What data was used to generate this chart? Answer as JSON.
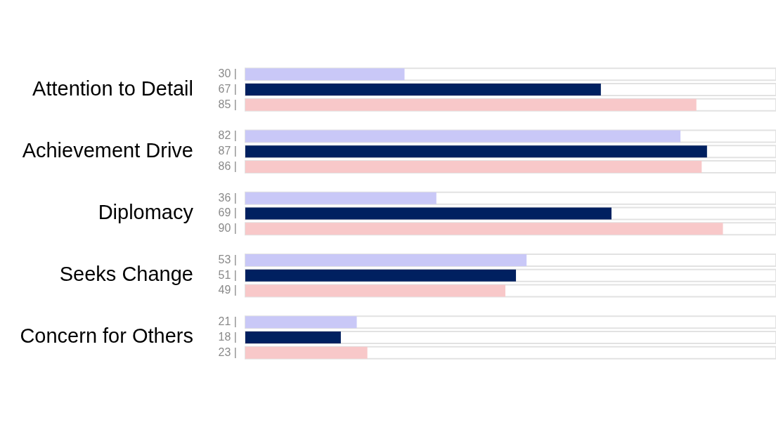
{
  "chart_data": {
    "type": "bar",
    "orientation": "horizontal",
    "categories": [
      "Attention to Detail",
      "Achievement Drive",
      "Diplomacy",
      "Seeks Change",
      "Concern for Others"
    ],
    "series": [
      {
        "color": "#c9c8f7",
        "values": [
          30,
          82,
          36,
          53,
          21
        ],
        "value_labels": [
          "30 |",
          "82 |",
          "36 |",
          "53 |",
          "21 |"
        ]
      },
      {
        "color": "#002060",
        "values": [
          67,
          87,
          69,
          51,
          18
        ],
        "value_labels": [
          "67 |",
          "87 |",
          "69 |",
          "51 |",
          "18 |"
        ]
      },
      {
        "color": "#f8c8c9",
        "values": [
          85,
          86,
          90,
          49,
          23
        ],
        "value_labels": [
          "85 |",
          "86 |",
          "90 |",
          "49 |",
          "23 |"
        ]
      }
    ],
    "xlim": [
      0,
      100
    ],
    "tick_labels": "y",
    "grid": false,
    "legend": false
  }
}
